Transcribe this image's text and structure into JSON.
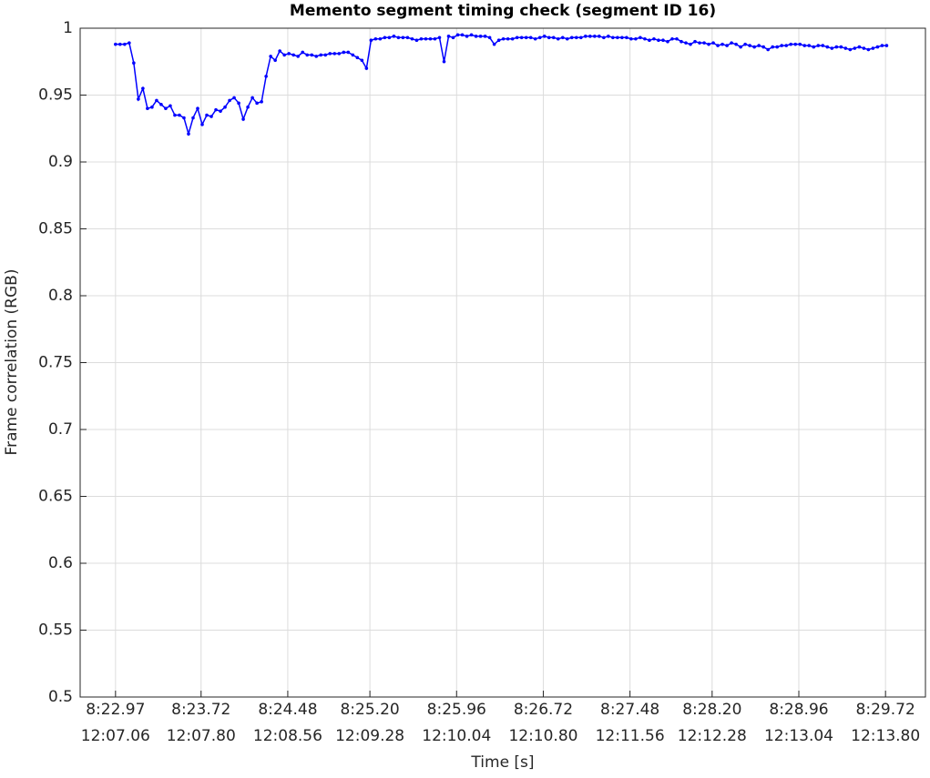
{
  "chart_data": {
    "type": "line",
    "title": "Memento segment timing check (segment ID 16)",
    "xlabel": "Time [s]",
    "ylabel": "Frame correlation (RGB)",
    "color": "#0000ff",
    "grid": true,
    "markers": true,
    "xlim": [
      502.66,
      510.07
    ],
    "ylim": [
      0.5,
      1
    ],
    "yticks": [
      0.5,
      0.55,
      0.6,
      0.65,
      0.7,
      0.75,
      0.8,
      0.85,
      0.9,
      0.95,
      1
    ],
    "xticks": [
      {
        "value": 502.97,
        "label": "8:22.97",
        "sublabel": "12:07.06"
      },
      {
        "value": 503.72,
        "label": "8:23.72",
        "sublabel": "12:07.80"
      },
      {
        "value": 504.48,
        "label": "8:24.48",
        "sublabel": "12:08.56"
      },
      {
        "value": 505.2,
        "label": "8:25.20",
        "sublabel": "12:09.28"
      },
      {
        "value": 505.96,
        "label": "8:25.96",
        "sublabel": "12:10.04"
      },
      {
        "value": 506.72,
        "label": "8:26.72",
        "sublabel": "12:10.80"
      },
      {
        "value": 507.48,
        "label": "8:27.48",
        "sublabel": "12:11.56"
      },
      {
        "value": 508.2,
        "label": "8:28.20",
        "sublabel": "12:12.28"
      },
      {
        "value": 508.96,
        "label": "8:28.96",
        "sublabel": "12:13.04"
      },
      {
        "value": 509.72,
        "label": "8:29.72",
        "sublabel": "12:13.80"
      }
    ],
    "x": [
      502.97,
      503.01,
      503.05,
      503.09,
      503.13,
      503.17,
      503.21,
      503.25,
      503.29,
      503.33,
      503.37,
      503.41,
      503.45,
      503.49,
      503.53,
      503.57,
      503.61,
      503.65,
      503.69,
      503.73,
      503.77,
      503.81,
      503.85,
      503.89,
      503.93,
      503.97,
      504.01,
      504.05,
      504.09,
      504.13,
      504.17,
      504.21,
      504.25,
      504.29,
      504.33,
      504.37,
      504.41,
      504.45,
      504.49,
      504.53,
      504.57,
      504.61,
      504.65,
      504.69,
      504.73,
      504.77,
      504.81,
      504.85,
      504.89,
      504.93,
      504.97,
      505.01,
      505.05,
      505.09,
      505.13,
      505.17,
      505.21,
      505.25,
      505.29,
      505.33,
      505.37,
      505.41,
      505.45,
      505.49,
      505.53,
      505.57,
      505.61,
      505.65,
      505.69,
      505.73,
      505.77,
      505.81,
      505.85,
      505.89,
      505.93,
      505.97,
      506.01,
      506.05,
      506.09,
      506.13,
      506.17,
      506.21,
      506.25,
      506.29,
      506.33,
      506.37,
      506.41,
      506.45,
      506.49,
      506.53,
      506.57,
      506.61,
      506.65,
      506.69,
      506.73,
      506.77,
      506.81,
      506.85,
      506.89,
      506.93,
      506.97,
      507.01,
      507.05,
      507.09,
      507.13,
      507.17,
      507.21,
      507.25,
      507.29,
      507.33,
      507.37,
      507.41,
      507.45,
      507.49,
      507.53,
      507.57,
      507.61,
      507.65,
      507.69,
      507.73,
      507.77,
      507.81,
      507.85,
      507.89,
      507.93,
      507.97,
      508.01,
      508.05,
      508.09,
      508.13,
      508.17,
      508.21,
      508.25,
      508.29,
      508.33,
      508.37,
      508.41,
      508.45,
      508.49,
      508.53,
      508.57,
      508.61,
      508.65,
      508.69,
      508.73,
      508.77,
      508.81,
      508.85,
      508.89,
      508.93,
      508.97,
      509.01,
      509.05,
      509.09,
      509.13,
      509.17,
      509.21,
      509.25,
      509.29,
      509.33,
      509.37,
      509.41,
      509.45,
      509.49,
      509.53,
      509.57,
      509.61,
      509.65,
      509.69,
      509.73
    ],
    "values": [
      0.988,
      0.988,
      0.988,
      0.989,
      0.974,
      0.947,
      0.955,
      0.94,
      0.941,
      0.946,
      0.943,
      0.94,
      0.942,
      0.935,
      0.935,
      0.933,
      0.921,
      0.933,
      0.94,
      0.928,
      0.935,
      0.934,
      0.939,
      0.938,
      0.941,
      0.946,
      0.948,
      0.944,
      0.932,
      0.941,
      0.948,
      0.944,
      0.945,
      0.964,
      0.979,
      0.976,
      0.983,
      0.98,
      0.981,
      0.98,
      0.979,
      0.982,
      0.98,
      0.98,
      0.979,
      0.98,
      0.98,
      0.981,
      0.981,
      0.981,
      0.982,
      0.982,
      0.98,
      0.978,
      0.976,
      0.97,
      0.991,
      0.992,
      0.992,
      0.993,
      0.993,
      0.994,
      0.993,
      0.993,
      0.993,
      0.992,
      0.991,
      0.992,
      0.992,
      0.992,
      0.992,
      0.993,
      0.975,
      0.994,
      0.993,
      0.995,
      0.995,
      0.994,
      0.995,
      0.994,
      0.994,
      0.994,
      0.993,
      0.988,
      0.991,
      0.992,
      0.992,
      0.992,
      0.993,
      0.993,
      0.993,
      0.993,
      0.992,
      0.993,
      0.994,
      0.993,
      0.993,
      0.992,
      0.993,
      0.992,
      0.993,
      0.993,
      0.993,
      0.994,
      0.994,
      0.994,
      0.994,
      0.993,
      0.994,
      0.993,
      0.993,
      0.993,
      0.993,
      0.992,
      0.992,
      0.993,
      0.992,
      0.991,
      0.992,
      0.991,
      0.991,
      0.99,
      0.992,
      0.992,
      0.99,
      0.989,
      0.988,
      0.99,
      0.989,
      0.989,
      0.988,
      0.989,
      0.987,
      0.988,
      0.987,
      0.989,
      0.988,
      0.986,
      0.988,
      0.987,
      0.986,
      0.987,
      0.986,
      0.984,
      0.986,
      0.986,
      0.987,
      0.987,
      0.988,
      0.988,
      0.988,
      0.987,
      0.987,
      0.986,
      0.987,
      0.987,
      0.986,
      0.985,
      0.986,
      0.986,
      0.985,
      0.984,
      0.985,
      0.986,
      0.985,
      0.984,
      0.985,
      0.986,
      0.987,
      0.987
    ]
  }
}
